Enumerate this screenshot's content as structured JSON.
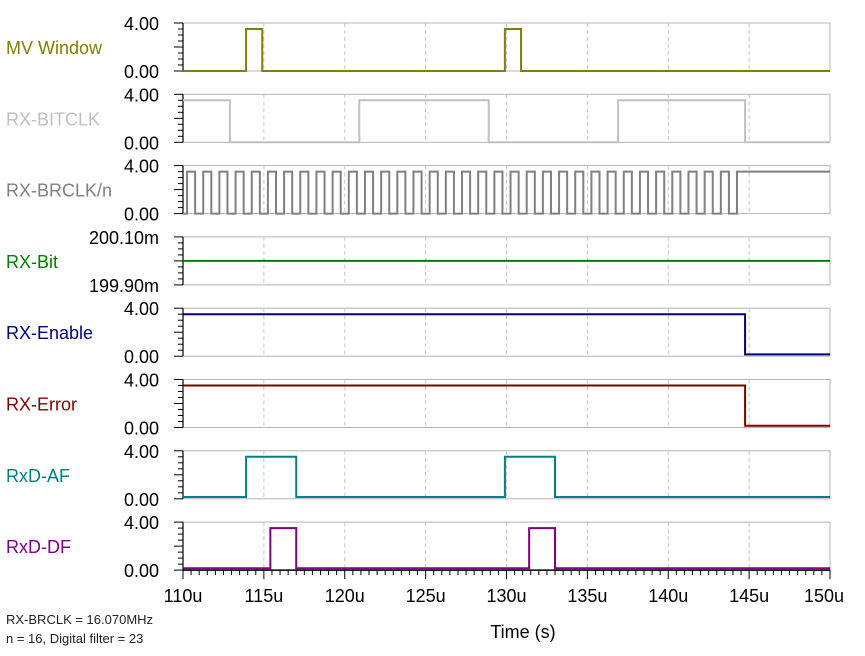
{
  "chart_data": {
    "type": "line",
    "xlabel": "Time (s)",
    "xlim": [
      110,
      150
    ],
    "x_unit": "µs",
    "x_ticks": [
      110,
      115,
      120,
      125,
      130,
      135,
      140,
      145,
      150
    ],
    "x_tick_labels": [
      "110u",
      "115u",
      "120u",
      "125u",
      "130u",
      "135u",
      "140u",
      "145u",
      "150u"
    ],
    "grid": true,
    "series": [
      {
        "name": "MV Window",
        "color": "#808000",
        "ylim": [
          0,
          4
        ],
        "tick_labels": [
          "4.00",
          "0.00"
        ],
        "high": 3.5,
        "low": 0,
        "initial": "low",
        "transitions": [
          113.9,
          114.9,
          129.9,
          130.9
        ]
      },
      {
        "name": "RX-BITCLK",
        "color": "#c0c0c0",
        "ylim": [
          0,
          4
        ],
        "tick_labels": [
          "4.00",
          "0.00"
        ],
        "high": 3.5,
        "low": 0,
        "initial": "high",
        "transitions": [
          112.9,
          120.9,
          128.9,
          136.9,
          144.75
        ]
      },
      {
        "name": "RX-BRCLK/n",
        "color": "#808080",
        "ylim": [
          0,
          4
        ],
        "tick_labels": [
          "4.00",
          "0.00"
        ],
        "high": 3.5,
        "low": 0,
        "initial": "low",
        "clock_period": 1.0,
        "clock_first_rise": 110.25,
        "clock_end": 144.75,
        "final": "high"
      },
      {
        "name": "RX-Bit",
        "color": "#008000",
        "ylim": [
          199.9,
          200.1
        ],
        "tick_labels": [
          "200.10m",
          "199.90m"
        ],
        "constant": 200.0
      },
      {
        "name": "RX-Enable",
        "color": "#000080",
        "ylim": [
          0,
          4
        ],
        "tick_labels": [
          "4.00",
          "0.00"
        ],
        "high": 3.5,
        "low": 0.15,
        "initial": "high",
        "transitions": [
          144.75
        ]
      },
      {
        "name": "RX-Error",
        "color": "#800000",
        "ylim": [
          0,
          4
        ],
        "tick_labels": [
          "4.00",
          "0.00"
        ],
        "high": 3.5,
        "low": 0.15,
        "initial": "high",
        "transitions": [
          144.75
        ]
      },
      {
        "name": "RxD-AF",
        "color": "#008080",
        "ylim": [
          0,
          4
        ],
        "tick_labels": [
          "4.00",
          "0.00"
        ],
        "high": 3.5,
        "low": 0.15,
        "initial": "low",
        "transitions": [
          113.9,
          117.0,
          129.9,
          133.0
        ]
      },
      {
        "name": "RxD-DF",
        "color": "#800080",
        "ylim": [
          0,
          4
        ],
        "tick_labels": [
          "4.00",
          "0.00"
        ],
        "high": 3.5,
        "low": 0.15,
        "initial": "low",
        "transitions": [
          115.4,
          117.0,
          131.4,
          133.0
        ]
      }
    ]
  },
  "notes": {
    "line1": "RX-BRCLK = 16.070MHz",
    "line2": "n = 16, Digital filter = 23"
  }
}
